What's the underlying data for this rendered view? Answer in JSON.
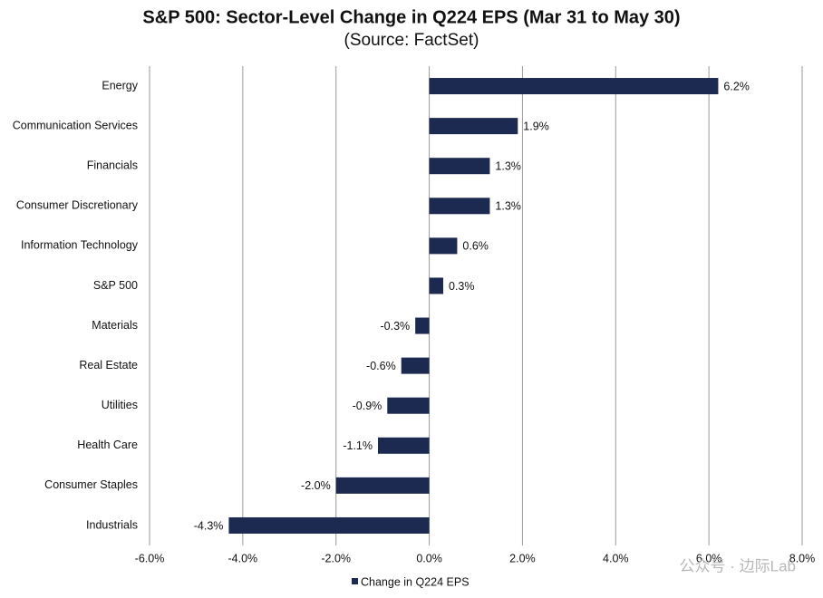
{
  "chart_data": {
    "type": "bar",
    "orientation": "horizontal",
    "title": "S&P 500: Sector-Level Change in Q224 EPS (Mar 31 to May 30)",
    "subtitle": "(Source: FactSet)",
    "categories": [
      "Energy",
      "Communication Services",
      "Financials",
      "Consumer Discretionary",
      "Information Technology",
      "S&P 500",
      "Materials",
      "Real Estate",
      "Utilities",
      "Health Care",
      "Consumer Staples",
      "Industrials"
    ],
    "series": [
      {
        "name": "Change in Q224 EPS",
        "color": "#1c2951",
        "values": [
          6.2,
          1.9,
          1.3,
          1.3,
          0.6,
          0.3,
          -0.3,
          -0.6,
          -0.9,
          -1.1,
          -2.0,
          -4.3
        ],
        "value_labels": [
          "6.2%",
          "1.9%",
          "1.3%",
          "1.3%",
          "0.6%",
          "0.3%",
          "-0.3%",
          "-0.6%",
          "-0.9%",
          "-1.1%",
          "-2.0%",
          "-4.3%"
        ]
      }
    ],
    "xlim": [
      -6,
      8
    ],
    "xticks": [
      {
        "value": -6,
        "label": "-6.0%"
      },
      {
        "value": -4,
        "label": "-4.0%"
      },
      {
        "value": -2,
        "label": "-2.0%"
      },
      {
        "value": 0,
        "label": "0.0%"
      },
      {
        "value": 2,
        "label": "2.0%"
      },
      {
        "value": 4,
        "label": "4.0%"
      },
      {
        "value": 6,
        "label": "6.0%"
      },
      {
        "value": 8,
        "label": "8.0%"
      }
    ],
    "grid": true,
    "legend": "bottom",
    "watermark": "公众号 · 边际Lab"
  }
}
